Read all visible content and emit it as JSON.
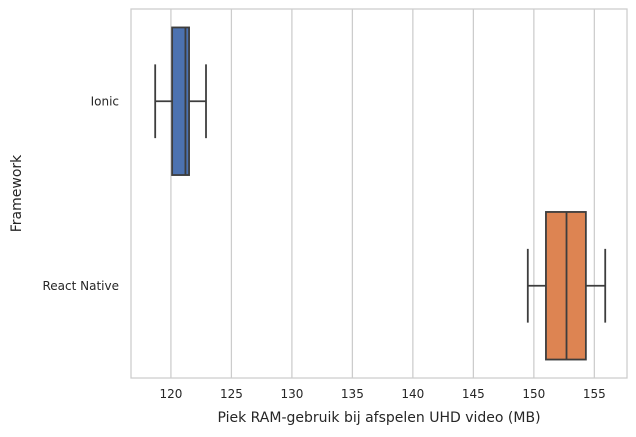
{
  "chart_data": {
    "type": "boxplot",
    "orientation": "horizontal",
    "xlabel": "Piek RAM-gebruik bij afspelen UHD video (MB)",
    "ylabel": "Framework",
    "xlim": [
      116.7,
      157.7
    ],
    "xticks": [
      120,
      125,
      130,
      135,
      140,
      145,
      150,
      155
    ],
    "grid": "vertical",
    "categories": [
      "Ionic",
      "React Native"
    ],
    "boxes": [
      {
        "category": "Ionic",
        "color": "#4c72b0",
        "whisker_low": 118.7,
        "q1": 120.1,
        "median": 121.2,
        "q3": 121.5,
        "whisker_high": 122.9
      },
      {
        "category": "React Native",
        "color": "#dd8452",
        "whisker_low": 149.5,
        "q1": 151.0,
        "median": 152.7,
        "q3": 154.3,
        "whisker_high": 155.9
      }
    ]
  }
}
